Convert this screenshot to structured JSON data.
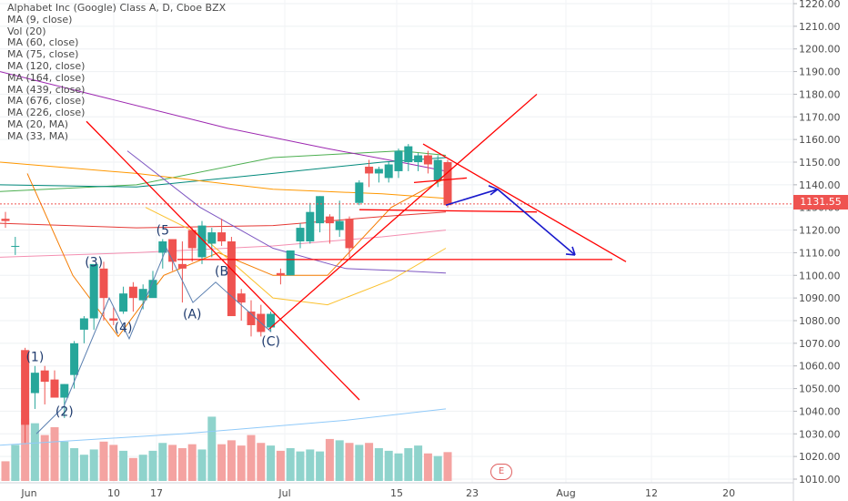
{
  "legend": [
    "Alphabet Inc (Google) Class A, D, Cboe BZX",
    "MA (9, close)",
    "Vol (20)",
    "MA (60, close)",
    "MA (75, close)",
    "MA (120, close)",
    "MA (164, close)",
    "MA (439, close)",
    "MA (676, close)",
    "MA (226, close)",
    "MA (20, MA)",
    "MA (33, MA)"
  ],
  "last_price_label": "1131.55",
  "earnings_marker": "E",
  "colors": {
    "up": "#26a69a",
    "down": "#ef5350",
    "trend": "#ff0000",
    "arrow": "#1a1acc"
  },
  "chart_data": {
    "type": "candlestick",
    "title": "Alphabet Inc (Google) Class A, D, Cboe BZX",
    "y_axis": {
      "ticks": [
        "1010.00",
        "1020.00",
        "1030.00",
        "1040.00",
        "1050.00",
        "1060.00",
        "1070.00",
        "1080.00",
        "1090.00",
        "1100.00",
        "1110.00",
        "1120.00",
        "1130.00",
        "1140.00",
        "1150.00",
        "1160.00",
        "1170.00",
        "1180.00",
        "1190.00",
        "1200.00",
        "1210.00",
        "1220.00"
      ],
      "range": [
        1007,
        1222
      ]
    },
    "x_axis": {
      "ticks": [
        "Jun",
        "10",
        "17",
        "Jul",
        "15",
        "23",
        "Aug",
        "12",
        "20"
      ]
    },
    "last_price": 1131.55,
    "candles": [
      {
        "o": 1125,
        "h": 1128,
        "l": 1121,
        "c": 1124
      },
      {
        "o": 1113,
        "h": 1117,
        "l": 1109,
        "c": 1113
      },
      {
        "o": 1067,
        "h": 1068,
        "l": 1026,
        "c": 1034
      },
      {
        "o": 1048,
        "h": 1060,
        "l": 1041,
        "c": 1057
      },
      {
        "o": 1058,
        "h": 1060,
        "l": 1043,
        "c": 1053
      },
      {
        "o": 1054,
        "h": 1058,
        "l": 1047,
        "c": 1046
      },
      {
        "o": 1046,
        "h": 1052,
        "l": 1037,
        "c": 1052
      },
      {
        "o": 1056,
        "h": 1071,
        "l": 1050,
        "c": 1070
      },
      {
        "o": 1076,
        "h": 1082,
        "l": 1070,
        "c": 1081
      },
      {
        "o": 1081,
        "h": 1104,
        "l": 1076,
        "c": 1105
      },
      {
        "o": 1103,
        "h": 1106,
        "l": 1080,
        "c": 1090
      },
      {
        "o": 1081,
        "h": 1086,
        "l": 1078,
        "c": 1080
      },
      {
        "o": 1084,
        "h": 1095,
        "l": 1083,
        "c": 1092
      },
      {
        "o": 1095,
        "h": 1097,
        "l": 1084,
        "c": 1090
      },
      {
        "o": 1089,
        "h": 1096,
        "l": 1085,
        "c": 1094
      },
      {
        "o": 1090,
        "h": 1102,
        "l": 1091,
        "c": 1098
      },
      {
        "o": 1110,
        "h": 1116,
        "l": 1103,
        "c": 1115
      },
      {
        "o": 1116,
        "h": 1116,
        "l": 1102,
        "c": 1106
      },
      {
        "o": 1105,
        "h": 1115,
        "l": 1088,
        "c": 1103
      },
      {
        "o": 1120,
        "h": 1121,
        "l": 1106,
        "c": 1112
      },
      {
        "o": 1108,
        "h": 1124,
        "l": 1105,
        "c": 1122
      },
      {
        "o": 1114,
        "h": 1121,
        "l": 1108,
        "c": 1119
      },
      {
        "o": 1119,
        "h": 1125,
        "l": 1113,
        "c": 1115
      },
      {
        "o": 1115,
        "h": 1117,
        "l": 1084,
        "c": 1082
      },
      {
        "o": 1092,
        "h": 1094,
        "l": 1080,
        "c": 1088
      },
      {
        "o": 1084,
        "h": 1089,
        "l": 1073,
        "c": 1078
      },
      {
        "o": 1083,
        "h": 1087,
        "l": 1073,
        "c": 1075
      },
      {
        "o": 1077,
        "h": 1084,
        "l": 1075,
        "c": 1083
      },
      {
        "o": 1101,
        "h": 1103,
        "l": 1096,
        "c": 1100
      },
      {
        "o": 1100,
        "h": 1111,
        "l": 1100,
        "c": 1111
      },
      {
        "o": 1115,
        "h": 1123,
        "l": 1112,
        "c": 1121
      },
      {
        "o": 1115,
        "h": 1132,
        "l": 1114,
        "c": 1128
      },
      {
        "o": 1123,
        "h": 1135,
        "l": 1119,
        "c": 1135
      },
      {
        "o": 1126,
        "h": 1127,
        "l": 1114,
        "c": 1123
      },
      {
        "o": 1120,
        "h": 1133,
        "l": 1117,
        "c": 1124
      },
      {
        "o": 1125,
        "h": 1126,
        "l": 1108,
        "c": 1112
      },
      {
        "o": 1132,
        "h": 1142,
        "l": 1131,
        "c": 1141
      },
      {
        "o": 1148,
        "h": 1151,
        "l": 1139,
        "c": 1145
      },
      {
        "o": 1145,
        "h": 1148,
        "l": 1141,
        "c": 1147
      },
      {
        "o": 1143,
        "h": 1150,
        "l": 1141,
        "c": 1149
      },
      {
        "o": 1146,
        "h": 1156,
        "l": 1143,
        "c": 1155
      },
      {
        "o": 1150,
        "h": 1158,
        "l": 1146,
        "c": 1157
      },
      {
        "o": 1150,
        "h": 1154,
        "l": 1146,
        "c": 1153
      },
      {
        "o": 1153,
        "h": 1155,
        "l": 1145,
        "c": 1149
      },
      {
        "o": 1142,
        "h": 1153,
        "l": 1139,
        "c": 1151
      },
      {
        "o": 1150,
        "h": 1151,
        "l": 1130,
        "c": 1131
      }
    ],
    "wave_labels": [
      {
        "text": "(1)",
        "idx": 3,
        "price": 1062
      },
      {
        "text": "(2)",
        "idx": 6,
        "price": 1038
      },
      {
        "text": "(3)",
        "idx": 9,
        "price": 1104
      },
      {
        "text": "(4)",
        "idx": 12,
        "price": 1075
      },
      {
        "text": "(5",
        "idx": 16,
        "price": 1118
      },
      {
        "text": "(A)",
        "idx": 19,
        "price": 1081
      },
      {
        "text": "(B",
        "idx": 22,
        "price": 1100
      },
      {
        "text": "(C)",
        "idx": 27,
        "price": 1069
      }
    ]
  }
}
